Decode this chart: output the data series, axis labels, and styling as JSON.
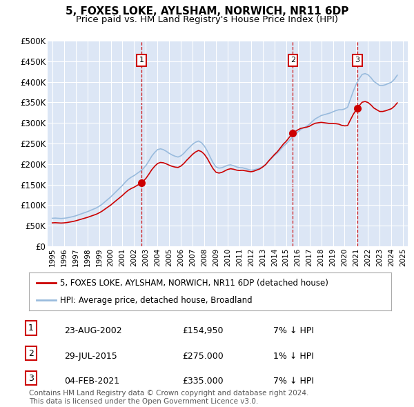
{
  "title": "5, FOXES LOKE, AYLSHAM, NORWICH, NR11 6DP",
  "subtitle": "Price paid vs. HM Land Registry's House Price Index (HPI)",
  "ylim": [
    0,
    500000
  ],
  "xlim_start": 1994.6,
  "xlim_end": 2025.4,
  "yticks": [
    0,
    50000,
    100000,
    150000,
    200000,
    250000,
    300000,
    350000,
    400000,
    450000,
    500000
  ],
  "ytick_labels": [
    "£0",
    "£50K",
    "£100K",
    "£150K",
    "£200K",
    "£250K",
    "£300K",
    "£350K",
    "£400K",
    "£450K",
    "£500K"
  ],
  "xtick_years": [
    1995,
    1996,
    1997,
    1998,
    1999,
    2000,
    2001,
    2002,
    2003,
    2004,
    2005,
    2006,
    2007,
    2008,
    2009,
    2010,
    2011,
    2012,
    2013,
    2014,
    2015,
    2016,
    2017,
    2018,
    2019,
    2020,
    2021,
    2022,
    2023,
    2024,
    2025
  ],
  "background_color": "#dce6f5",
  "grid_color": "#ffffff",
  "sale_dates": [
    2002.644,
    2015.572,
    2021.088
  ],
  "sale_prices": [
    154950,
    275000,
    335000
  ],
  "sale_labels": [
    "1",
    "2",
    "3"
  ],
  "sale_info": [
    {
      "label": "1",
      "date": "23-AUG-2002",
      "price": "£154,950",
      "hpi": "7% ↓ HPI"
    },
    {
      "label": "2",
      "date": "29-JUL-2015",
      "price": "£275.000",
      "hpi": "1% ↓ HPI"
    },
    {
      "label": "3",
      "date": "04-FEB-2021",
      "price": "£335.000",
      "hpi": "7% ↓ HPI"
    }
  ],
  "red_line_color": "#cc0000",
  "blue_line_color": "#99bbdd",
  "dashed_line_color": "#cc0000",
  "legend_label_red": "5, FOXES LOKE, AYLSHAM, NORWICH, NR11 6DP (detached house)",
  "legend_label_blue": "HPI: Average price, detached house, Broadland",
  "footer_text": "Contains HM Land Registry data © Crown copyright and database right 2024.\nThis data is licensed under the Open Government Licence v3.0.",
  "hpi_years": [
    1995.0,
    1995.25,
    1995.5,
    1995.75,
    1996.0,
    1996.25,
    1996.5,
    1996.75,
    1997.0,
    1997.25,
    1997.5,
    1997.75,
    1998.0,
    1998.25,
    1998.5,
    1998.75,
    1999.0,
    1999.25,
    1999.5,
    1999.75,
    2000.0,
    2000.25,
    2000.5,
    2000.75,
    2001.0,
    2001.25,
    2001.5,
    2001.75,
    2002.0,
    2002.25,
    2002.5,
    2002.75,
    2003.0,
    2003.25,
    2003.5,
    2003.75,
    2004.0,
    2004.25,
    2004.5,
    2004.75,
    2005.0,
    2005.25,
    2005.5,
    2005.75,
    2006.0,
    2006.25,
    2006.5,
    2006.75,
    2007.0,
    2007.25,
    2007.5,
    2007.75,
    2008.0,
    2008.25,
    2008.5,
    2008.75,
    2009.0,
    2009.25,
    2009.5,
    2009.75,
    2010.0,
    2010.25,
    2010.5,
    2010.75,
    2011.0,
    2011.25,
    2011.5,
    2011.75,
    2012.0,
    2012.25,
    2012.5,
    2012.75,
    2013.0,
    2013.25,
    2013.5,
    2013.75,
    2014.0,
    2014.25,
    2014.5,
    2014.75,
    2015.0,
    2015.25,
    2015.5,
    2015.75,
    2016.0,
    2016.25,
    2016.5,
    2016.75,
    2017.0,
    2017.25,
    2017.5,
    2017.75,
    2018.0,
    2018.25,
    2018.5,
    2018.75,
    2019.0,
    2019.25,
    2019.5,
    2019.75,
    2020.0,
    2020.25,
    2020.5,
    2020.75,
    2021.0,
    2021.25,
    2021.5,
    2021.75,
    2022.0,
    2022.25,
    2022.5,
    2022.75,
    2023.0,
    2023.25,
    2023.5,
    2023.75,
    2024.0,
    2024.25,
    2024.5
  ],
  "hpi_values": [
    68000,
    68500,
    68000,
    67500,
    68000,
    69000,
    70500,
    72000,
    74000,
    76500,
    79000,
    81500,
    84000,
    87000,
    90000,
    93000,
    97000,
    102000,
    108000,
    114000,
    120000,
    127000,
    134000,
    141000,
    148000,
    156000,
    163000,
    168000,
    172000,
    177000,
    182000,
    188000,
    196000,
    207000,
    219000,
    228000,
    235000,
    237000,
    235000,
    231000,
    226000,
    222000,
    219000,
    217000,
    220000,
    226000,
    234000,
    241000,
    248000,
    253000,
    256000,
    252000,
    244000,
    232000,
    217000,
    203000,
    193000,
    190000,
    191000,
    194000,
    197000,
    198000,
    196000,
    193000,
    191000,
    191000,
    189000,
    187000,
    185000,
    186000,
    188000,
    190000,
    194000,
    199000,
    207000,
    214000,
    221000,
    227000,
    235000,
    243000,
    249000,
    257000,
    264000,
    271000,
    278000,
    284000,
    288000,
    292000,
    297000,
    304000,
    310000,
    314000,
    318000,
    320000,
    322000,
    324000,
    327000,
    330000,
    332000,
    332000,
    334000,
    338000,
    358000,
    378000,
    395000,
    408000,
    418000,
    420000,
    417000,
    410000,
    401000,
    396000,
    391000,
    391000,
    393000,
    396000,
    399000,
    406000,
    416000
  ],
  "sale_anchors": [
    {
      "date": 2002.644,
      "price": 154950
    },
    {
      "date": 2015.572,
      "price": 275000
    },
    {
      "date": 2021.088,
      "price": 335000
    }
  ]
}
